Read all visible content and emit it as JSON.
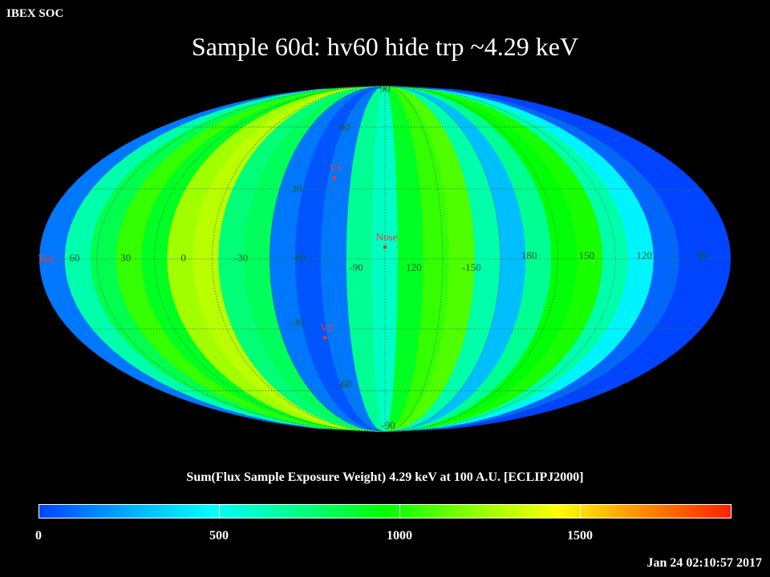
{
  "header": {
    "corner_label": "IBEX SOC",
    "title": "Sample 60d: hv60 hide trp ~4.29 keV",
    "timestamp": "Jan 24 02:10:57 2017"
  },
  "colors": {
    "background": "#000000",
    "ramp": [
      "#0044ff",
      "#00aaff",
      "#00ffff",
      "#00ff88",
      "#00ff00",
      "#88ff00",
      "#ffff00",
      "#ff8800",
      "#ff2200"
    ],
    "grid": "#2f7a3f",
    "marker": "#ff3333"
  },
  "map": {
    "projection": "Mollweide",
    "lat_labels": [
      "90",
      "60",
      "30",
      "-30",
      "-60",
      "-90"
    ],
    "lon_labels": [
      "60",
      "30",
      "0",
      "-30",
      "-60",
      "-90",
      "120",
      "-150",
      "180",
      "150",
      "120",
      "90"
    ],
    "markers": [
      {
        "label": "V1",
        "lat": 35,
        "lon": -75
      },
      {
        "label": "Nose",
        "lat": 5,
        "lon": -105
      },
      {
        "label": "V2",
        "lat": -34,
        "lon": -70
      },
      {
        "label": "Tail",
        "lat": 0,
        "lon": 75
      }
    ],
    "band_values": [
      120,
      650,
      820,
      1050,
      900,
      1250,
      1300,
      750,
      800,
      120,
      40,
      120,
      700,
      600,
      900,
      1050,
      1100,
      650,
      300,
      700,
      950,
      1000,
      650,
      450,
      80,
      0,
      0
    ]
  },
  "colorbar": {
    "title": "Sum(Flux Sample Exposure Weight)  4.29 keV at 100 A.U. [ECLIPJ2000]",
    "range": [
      0,
      1920
    ],
    "ticks": [
      {
        "label": "0",
        "value": 0
      },
      {
        "label": "500",
        "value": 500
      },
      {
        "label": "1000",
        "value": 1000
      },
      {
        "label": "1500",
        "value": 1500
      }
    ]
  }
}
